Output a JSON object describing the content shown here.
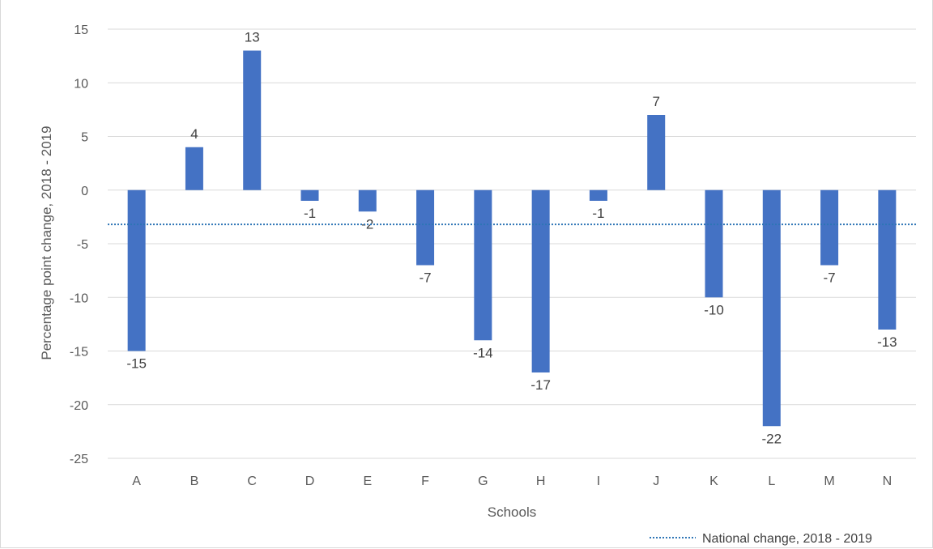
{
  "chart_data": {
    "type": "bar",
    "categories": [
      "A",
      "B",
      "C",
      "D",
      "E",
      "F",
      "G",
      "H",
      "I",
      "J",
      "K",
      "L",
      "M",
      "N"
    ],
    "series": [
      {
        "values": [
          -15,
          4,
          13,
          -1,
          -2,
          -7,
          -14,
          -17,
          -1,
          7,
          -10,
          -22,
          -7,
          -13
        ]
      }
    ],
    "reference_line": {
      "name": "National change, 2018 - 2019",
      "value": -3.2
    },
    "xlabel": "Schools",
    "ylabel": "Percentage point change, 2018 - 2019",
    "ylim": [
      -25,
      15
    ],
    "yticks": [
      15,
      10,
      5,
      0,
      -5,
      -10,
      -15,
      -20,
      -25
    ],
    "grid": true,
    "legend_position": "bottom-right",
    "colors": {
      "bar": "#4472c4",
      "reference_line": "#2e75b6",
      "grid": "#d9d9d9"
    }
  }
}
